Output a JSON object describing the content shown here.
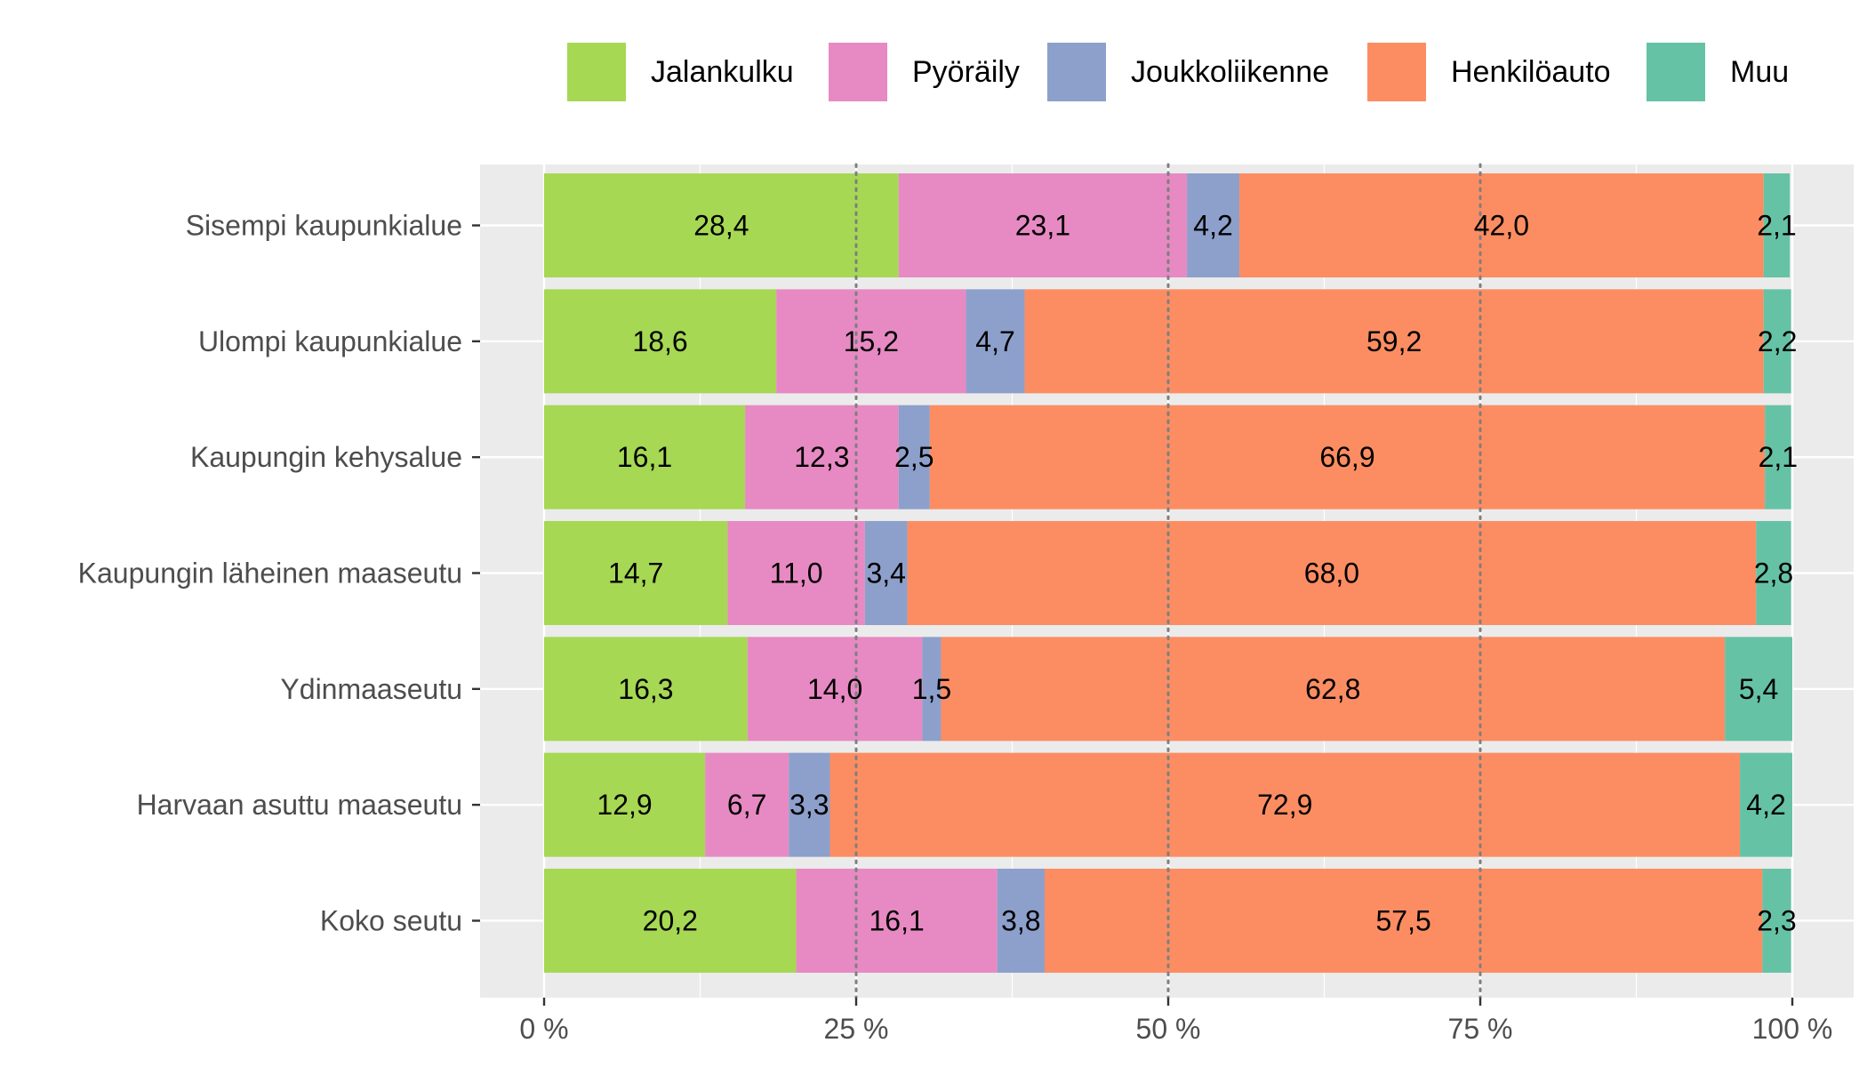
{
  "chart_data": {
    "type": "bar",
    "orientation": "horizontal",
    "stacked": true,
    "categories": [
      "Sisempi kaupunkialue",
      "Ulompi kaupunkialue",
      "Kaupungin kehysalue",
      "Kaupungin läheinen maaseutu",
      "Ydinmaaseutu",
      "Harvaan asuttu maaseutu",
      "Koko seutu"
    ],
    "series": [
      {
        "name": "Jalankulku",
        "color": "#a6d854",
        "values": [
          28.4,
          18.6,
          16.1,
          14.7,
          16.3,
          12.9,
          20.2
        ],
        "labels": [
          "28,4",
          "18,6",
          "16,1",
          "14,7",
          "16,3",
          "12,9",
          "20,2"
        ]
      },
      {
        "name": "Pyöräily",
        "color": "#e78ac3",
        "values": [
          23.1,
          15.2,
          12.3,
          11.0,
          14.0,
          6.7,
          16.1
        ],
        "labels": [
          "23,1",
          "15,2",
          "12,3",
          "11,0",
          "14,0",
          "6,7",
          "16,1"
        ]
      },
      {
        "name": "Joukkoliikenne",
        "color": "#8da0cb",
        "values": [
          4.2,
          4.7,
          2.5,
          3.4,
          1.5,
          3.3,
          3.8
        ],
        "labels": [
          "4,2",
          "4,7",
          "2,5",
          "3,4",
          "1,5",
          "3,3",
          "3,8"
        ]
      },
      {
        "name": "Henkilöauto",
        "color": "#fc8d62",
        "values": [
          42.0,
          59.2,
          66.9,
          68.0,
          62.8,
          72.9,
          57.5
        ],
        "labels": [
          "42,0",
          "59,2",
          "66,9",
          "68,0",
          "62,8",
          "72,9",
          "57,5"
        ]
      },
      {
        "name": "Muu",
        "color": "#66c2a5",
        "values": [
          2.1,
          2.2,
          2.1,
          2.8,
          5.4,
          4.2,
          2.3
        ],
        "labels": [
          "2,1",
          "2,2",
          "2,1",
          "2,8",
          "5,4",
          "4,2",
          "2,3"
        ]
      }
    ],
    "xlim": [
      0,
      100
    ],
    "x_ticks": [
      0,
      25,
      50,
      75,
      100
    ],
    "x_tick_labels": [
      "0 %",
      "25 %",
      "50 %",
      "75 %",
      "100 %"
    ],
    "reference_lines": [
      25,
      50,
      75
    ],
    "legend_position": "top",
    "grid": true,
    "panel_background": "#ebebeb",
    "title": "",
    "xlabel": "",
    "ylabel": ""
  }
}
